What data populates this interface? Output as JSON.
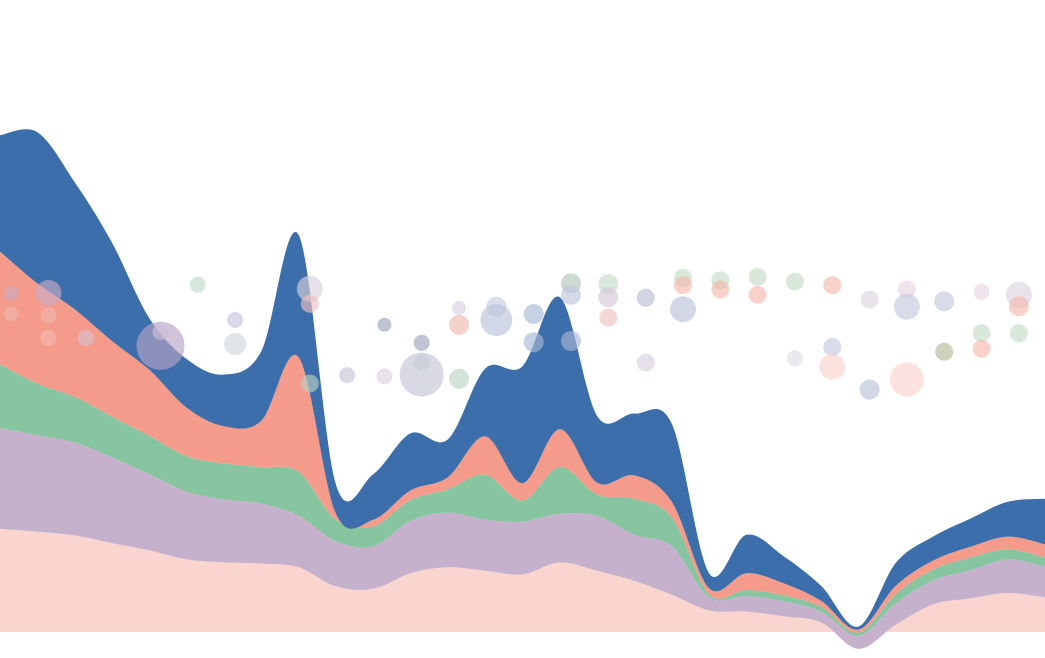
{
  "chart_data": {
    "type": "area",
    "subtype": "streamgraph-with-bubble-overlay",
    "title": "",
    "xlabel": "",
    "ylabel": "",
    "grid": false,
    "legend": "none",
    "x": [
      0,
      1,
      2,
      3,
      4,
      5,
      6,
      7,
      8,
      9,
      10,
      11,
      12,
      13,
      14,
      15,
      16,
      17,
      18,
      19,
      20,
      21,
      22,
      23,
      24,
      25,
      26,
      27,
      28
    ],
    "ylim": [
      0,
      1000
    ],
    "series": [
      {
        "color": "#fad4ce",
        "values": [
          172,
          167,
          161,
          148,
          136,
          121,
          116,
          114,
          108,
          76,
          72,
          98,
          108,
          102,
          96,
          116,
          102,
          85,
          62,
          36,
          34,
          26,
          16,
          -28,
          12,
          46,
          56,
          65,
          58
        ]
      },
      {
        "color": "#c6b1cc",
        "values": [
          168,
          161,
          155,
          143,
          127,
          113,
          105,
          100,
          86,
          75,
          71,
          87,
          91,
          85,
          88,
          81,
          92,
          77,
          81,
          22,
          26,
          25,
          18,
          22,
          36,
          40,
          47,
          56,
          51
        ]
      },
      {
        "color": "#86c5a0",
        "values": [
          106,
          86,
          76,
          68,
          64,
          59,
          60,
          61,
          73,
          36,
          33,
          35,
          39,
          75,
          35,
          78,
          35,
          60,
          48,
          5,
          10,
          10,
          8,
          5,
          15,
          18,
          21,
          17,
          15
        ]
      },
      {
        "color": "#f59b8c",
        "values": [
          188,
          167,
          146,
          126,
          110,
          81,
          62,
          77,
          191,
          10,
          11,
          16,
          20,
          64,
          29,
          63,
          20,
          39,
          26,
          10,
          28,
          20,
          10,
          5,
          14,
          15,
          18,
          21,
          22
        ]
      },
      {
        "color": "#3b6eaa",
        "values": [
          194,
          252,
          212,
          164,
          86,
          81,
          86,
          116,
          204,
          49,
          76,
          95,
          63,
          113,
          195,
          220,
          111,
          103,
          130,
          25,
          64,
          45,
          25,
          5,
          38,
          40,
          47,
          58,
          76
        ]
      }
    ],
    "bubbles": [
      {
        "x": 0.3,
        "y": 565,
        "r": 7,
        "color": "#c8aac4"
      },
      {
        "x": 0.3,
        "y": 530,
        "r": 7,
        "color": "#eeb6ae"
      },
      {
        "x": 1.3,
        "y": 565,
        "r": 13,
        "color": "#c8aac4"
      },
      {
        "x": 1.3,
        "y": 528,
        "r": 8,
        "color": "#eeb6ae"
      },
      {
        "x": 1.3,
        "y": 490,
        "r": 8,
        "color": "#f2b8ad"
      },
      {
        "x": 2.3,
        "y": 490,
        "r": 8,
        "color": "#d9bfce"
      },
      {
        "x": 4.3,
        "y": 477,
        "r": 24,
        "color": "#b8a3c6"
      },
      {
        "x": 4.3,
        "y": 500,
        "r": 8,
        "color": "#cbbdd2"
      },
      {
        "x": 5.3,
        "y": 579,
        "r": 8,
        "color": "#bfd9c8"
      },
      {
        "x": 6.3,
        "y": 520,
        "r": 8,
        "color": "#c7c1d8"
      },
      {
        "x": 6.3,
        "y": 480,
        "r": 11,
        "color": "#cfd4dc"
      },
      {
        "x": 8.3,
        "y": 572,
        "r": 13,
        "color": "#d8cfdc"
      },
      {
        "x": 8.3,
        "y": 547,
        "r": 9,
        "color": "#f0c0c0"
      },
      {
        "x": 8.3,
        "y": 414,
        "r": 9,
        "color": "#b7cfc0"
      },
      {
        "x": 9.3,
        "y": 428,
        "r": 8,
        "color": "#c4c4d8"
      },
      {
        "x": 10.3,
        "y": 512,
        "r": 7,
        "color": "#9ba4bf"
      },
      {
        "x": 10.3,
        "y": 426,
        "r": 8,
        "color": "#dbd1de"
      },
      {
        "x": 11.3,
        "y": 482,
        "r": 8,
        "color": "#9ba4bf"
      },
      {
        "x": 11.3,
        "y": 449,
        "r": 8,
        "color": "#c9dcc7"
      },
      {
        "x": 11.3,
        "y": 429,
        "r": 22,
        "color": "#c4c4d8"
      },
      {
        "x": 12.3,
        "y": 540,
        "r": 7,
        "color": "#d8d0df"
      },
      {
        "x": 12.3,
        "y": 512,
        "r": 10,
        "color": "#f0b8b0"
      },
      {
        "x": 12.3,
        "y": 422,
        "r": 10,
        "color": "#bbd4c2"
      },
      {
        "x": 13.3,
        "y": 542,
        "r": 10,
        "color": "#c6cde0"
      },
      {
        "x": 13.3,
        "y": 520,
        "r": 16,
        "color": "#b8c2d8"
      },
      {
        "x": 14.3,
        "y": 530,
        "r": 10,
        "color": "#a9b8d6"
      },
      {
        "x": 14.3,
        "y": 483,
        "r": 10,
        "color": "#a9b8d6"
      },
      {
        "x": 15.3,
        "y": 581,
        "r": 10,
        "color": "#b0c6b8"
      },
      {
        "x": 15.3,
        "y": 562,
        "r": 10,
        "color": "#bec6dd"
      },
      {
        "x": 15.3,
        "y": 485,
        "r": 10,
        "color": "#a9b8d6"
      },
      {
        "x": 16.3,
        "y": 580,
        "r": 10,
        "color": "#c4dcc8"
      },
      {
        "x": 16.3,
        "y": 558,
        "r": 10,
        "color": "#d5c8da"
      },
      {
        "x": 16.3,
        "y": 524,
        "r": 9,
        "color": "#f0c0c0"
      },
      {
        "x": 17.3,
        "y": 557,
        "r": 9,
        "color": "#b9bdd2"
      },
      {
        "x": 17.3,
        "y": 449,
        "r": 9,
        "color": "#d8d0df"
      },
      {
        "x": 18.3,
        "y": 590,
        "r": 9,
        "color": "#c4dcc8"
      },
      {
        "x": 18.3,
        "y": 578,
        "r": 9,
        "color": "#f2b8ad"
      },
      {
        "x": 18.3,
        "y": 538,
        "r": 13,
        "color": "#b9c2d6"
      },
      {
        "x": 19.3,
        "y": 586,
        "r": 9,
        "color": "#c4dcc8"
      },
      {
        "x": 19.3,
        "y": 571,
        "r": 9,
        "color": "#f2b8ad"
      },
      {
        "x": 20.3,
        "y": 592,
        "r": 9,
        "color": "#c4dcc8"
      },
      {
        "x": 20.3,
        "y": 562,
        "r": 9,
        "color": "#f2b8ad"
      },
      {
        "x": 21.3,
        "y": 584,
        "r": 9,
        "color": "#c4dcc8"
      },
      {
        "x": 21.3,
        "y": 456,
        "r": 8,
        "color": "#dcdce6"
      },
      {
        "x": 22.3,
        "y": 578,
        "r": 9,
        "color": "#f2b8ad"
      },
      {
        "x": 22.3,
        "y": 475,
        "r": 9,
        "color": "#c3c8dc"
      },
      {
        "x": 22.3,
        "y": 442,
        "r": 13,
        "color": "#fad3cc"
      },
      {
        "x": 23.3,
        "y": 554,
        "r": 9,
        "color": "#dcd4e0"
      },
      {
        "x": 23.3,
        "y": 404,
        "r": 10,
        "color": "#b9c2d6"
      },
      {
        "x": 24.3,
        "y": 571,
        "r": 9,
        "color": "#e6d6e2"
      },
      {
        "x": 24.3,
        "y": 542,
        "r": 13,
        "color": "#c3c8dc"
      },
      {
        "x": 24.3,
        "y": 421,
        "r": 17,
        "color": "#fad3cc"
      },
      {
        "x": 25.3,
        "y": 551,
        "r": 10,
        "color": "#c3c8dc"
      },
      {
        "x": 25.3,
        "y": 467,
        "r": 9,
        "color": "#b6b99a"
      },
      {
        "x": 26.3,
        "y": 567,
        "r": 8,
        "color": "#e6d6e2"
      },
      {
        "x": 26.3,
        "y": 498,
        "r": 9,
        "color": "#c4dcc8"
      },
      {
        "x": 26.3,
        "y": 472,
        "r": 9,
        "color": "#f2b8ad"
      },
      {
        "x": 27.3,
        "y": 562,
        "r": 13,
        "color": "#dcd4e0"
      },
      {
        "x": 27.3,
        "y": 543,
        "r": 10,
        "color": "#f2b8ad"
      },
      {
        "x": 27.3,
        "y": 498,
        "r": 9,
        "color": "#c4dcc8"
      }
    ]
  }
}
